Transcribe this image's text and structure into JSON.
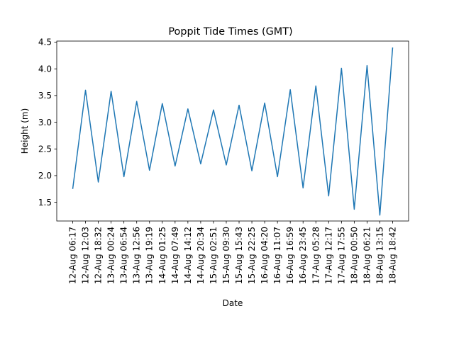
{
  "chart_data": {
    "type": "line",
    "title": "Poppit Tide Times (GMT)",
    "xlabel": "Date",
    "ylabel": "Height (m)",
    "ylim": [
      1.15,
      4.52
    ],
    "yticks": [
      "1.5",
      "2.0",
      "2.5",
      "3.0",
      "3.5",
      "4.0",
      "4.5"
    ],
    "grid": false,
    "series": [
      {
        "color": "#1f77b4",
        "x": [
          "12-Aug 06:17",
          "12-Aug 12:03",
          "12-Aug 18:32",
          "13-Aug 00:24",
          "13-Aug 06:54",
          "13-Aug 12:56",
          "13-Aug 19:19",
          "14-Aug 01:25",
          "14-Aug 07:49",
          "14-Aug 14:12",
          "14-Aug 20:34",
          "15-Aug 02:51",
          "15-Aug 09:30",
          "15-Aug 15:43",
          "15-Aug 22:25",
          "16-Aug 04:20",
          "16-Aug 11:07",
          "16-Aug 16:59",
          "16-Aug 23:45",
          "17-Aug 05:28",
          "17-Aug 12:17",
          "17-Aug 17:55",
          "18-Aug 00:50",
          "18-Aug 06:21",
          "18-Aug 13:15",
          "18-Aug 18:42"
        ],
        "y": [
          1.75,
          3.6,
          1.88,
          3.58,
          1.98,
          3.39,
          2.1,
          3.35,
          2.18,
          3.25,
          2.22,
          3.23,
          2.2,
          3.32,
          2.09,
          3.36,
          1.98,
          3.61,
          1.77,
          3.68,
          1.62,
          4.01,
          1.37,
          4.06,
          1.26,
          4.4
        ]
      }
    ]
  }
}
